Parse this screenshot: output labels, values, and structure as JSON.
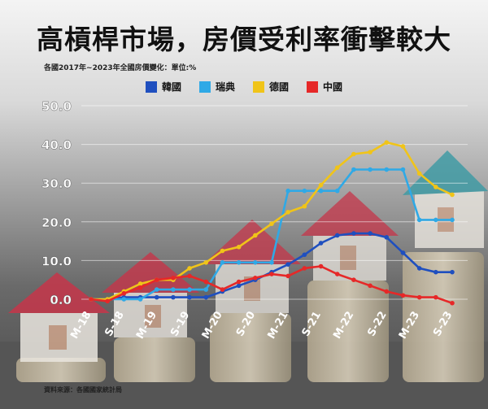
{
  "title": "高槓桿市場，房價受利率衝擊較大",
  "subtitle": "各國2017年~2023年全國房價變化：單位:%",
  "source": "資料來源：各國國家統計局",
  "chart_data": {
    "type": "line",
    "x": [
      "M-18",
      "",
      "S-18",
      "",
      "M-19",
      "",
      "S-19",
      "",
      "M-20",
      "",
      "S-20",
      "",
      "M-21",
      "",
      "S-21",
      "",
      "M-22",
      "",
      "S-22",
      "",
      "M-23",
      "",
      "S-23"
    ],
    "ylim": [
      0,
      50
    ],
    "yticks": [
      "0.0",
      "10.0",
      "20.0",
      "30.0",
      "40.0",
      "50.0"
    ],
    "ytick_values": [
      0,
      10,
      20,
      30,
      40,
      50
    ],
    "grid": true,
    "legend": "top-center",
    "series": [
      {
        "name": "韓國",
        "color": "#1f4fbf",
        "values": [
          0.0,
          0.0,
          0.5,
          0.5,
          0.5,
          0.5,
          0.5,
          0.5,
          2.0,
          3.5,
          5.0,
          7.0,
          9.0,
          11.5,
          14.5,
          16.5,
          17.0,
          17.0,
          16.0,
          12.0,
          8.0,
          7.0,
          7.0
        ]
      },
      {
        "name": "瑞典",
        "color": "#2fa9e6",
        "values": [
          0.0,
          0.0,
          0.0,
          0.0,
          2.5,
          2.5,
          2.5,
          2.5,
          9.5,
          9.5,
          9.5,
          9.5,
          28.0,
          28.0,
          28.0,
          28.0,
          33.5,
          33.5,
          33.5,
          33.5,
          20.5,
          20.5,
          20.5
        ]
      },
      {
        "name": "德國",
        "color": "#f0c419",
        "values": [
          0.0,
          0.0,
          2.0,
          4.0,
          5.0,
          5.0,
          8.0,
          9.5,
          12.5,
          13.5,
          16.5,
          19.5,
          22.5,
          24.0,
          29.5,
          34.0,
          37.5,
          38.0,
          40.5,
          39.5,
          32.5,
          29.0,
          27.0
        ]
      },
      {
        "name": "中國",
        "color": "#e62828",
        "values": [
          0.0,
          -0.5,
          1.5,
          3.0,
          5.0,
          5.5,
          6.0,
          4.5,
          2.5,
          4.5,
          5.5,
          6.5,
          6.0,
          8.0,
          8.5,
          6.5,
          5.0,
          3.5,
          2.0,
          1.0,
          0.5,
          0.5,
          -1.0
        ]
      }
    ]
  }
}
